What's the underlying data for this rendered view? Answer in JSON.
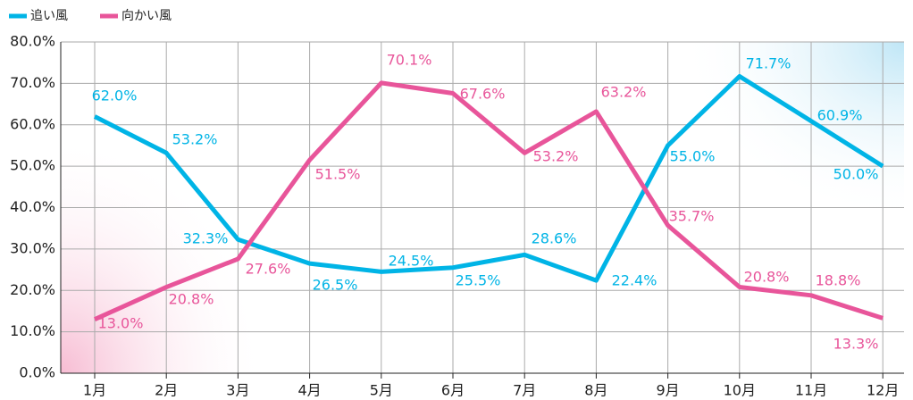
{
  "chart_data": {
    "type": "line",
    "categories": [
      "1月",
      "2月",
      "3月",
      "4月",
      "5月",
      "6月",
      "7月",
      "8月",
      "9月",
      "10月",
      "11月",
      "12月"
    ],
    "series": [
      {
        "name": "追い風",
        "color": "#00b4e6",
        "values": [
          62.0,
          53.2,
          32.3,
          26.5,
          24.5,
          25.5,
          28.6,
          22.4,
          55.0,
          71.7,
          60.9,
          50.0
        ],
        "value_labels": [
          "62.0%",
          "53.2%",
          "32.3%",
          "26.5%",
          "24.5%",
          "25.5%",
          "28.6%",
          "22.4%",
          "55.0%",
          "71.7%",
          "60.9%",
          "50.0%"
        ]
      },
      {
        "name": "向かい風",
        "color": "#e8559a",
        "values": [
          13.0,
          20.8,
          27.6,
          51.5,
          70.1,
          67.6,
          53.2,
          63.2,
          35.7,
          20.8,
          18.8,
          13.3
        ],
        "value_labels": [
          "13.0%",
          "20.8%",
          "27.6%",
          "51.5%",
          "70.1%",
          "67.6%",
          "53.2%",
          "63.2%",
          "35.7%",
          "20.8%",
          "18.8%",
          "13.3%"
        ]
      }
    ],
    "ylim": [
      0,
      80
    ],
    "yticks": [
      {
        "value": 0,
        "label": "0.0%"
      },
      {
        "value": 10,
        "label": "10.0%"
      },
      {
        "value": 20,
        "label": "20.0%"
      },
      {
        "value": 30,
        "label": "30.0%"
      },
      {
        "value": 40,
        "label": "40.0%"
      },
      {
        "value": 50,
        "label": "50.0%"
      },
      {
        "value": 60,
        "label": "60.0%"
      },
      {
        "value": 70,
        "label": "70.0%"
      },
      {
        "value": 80,
        "label": "80.0%"
      }
    ],
    "grid": true
  }
}
